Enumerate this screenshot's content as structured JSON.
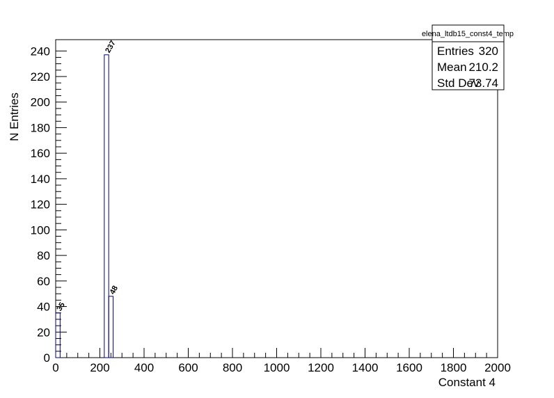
{
  "chart_data": {
    "type": "histogram",
    "x_label": "Constant 4",
    "y_label": "N Entries",
    "color": "#000080",
    "bins": [
      0,
      20,
      40,
      60,
      80,
      100,
      120,
      140,
      160,
      180,
      200,
      220,
      240,
      260,
      280,
      300,
      320,
      340,
      360,
      380,
      400,
      420,
      440,
      460,
      480,
      500,
      520,
      540,
      560,
      580,
      600,
      620,
      640,
      660,
      680,
      700,
      720,
      740,
      760,
      780,
      800,
      820,
      840,
      860,
      880,
      900,
      920,
      940,
      960,
      980,
      1000,
      1020,
      1040,
      1060,
      1080,
      1100,
      1120,
      1140,
      1160,
      1180,
      1200,
      1220,
      1240,
      1260,
      1280,
      1300,
      1320,
      1340,
      1360,
      1380,
      1400,
      1420,
      1440,
      1460,
      1480,
      1500,
      1520,
      1540,
      1560,
      1580,
      1600,
      1620,
      1640,
      1660,
      1680,
      1700,
      1720,
      1740,
      1760,
      1780,
      1800,
      1820,
      1840,
      1860,
      1880,
      1900,
      1920,
      1940,
      1960,
      1980,
      2000
    ],
    "counts": [
      35,
      0,
      0,
      0,
      0,
      0,
      0,
      0,
      0,
      0,
      0,
      237,
      48,
      0,
      0,
      0,
      0,
      0,
      0,
      0,
      0,
      0,
      0,
      0,
      0,
      0,
      0,
      0,
      0,
      0,
      0,
      0,
      0,
      0,
      0,
      0,
      0,
      0,
      0,
      0,
      0,
      0,
      0,
      0,
      0,
      0,
      0,
      0,
      0,
      0,
      0,
      0,
      0,
      0,
      0,
      0,
      0,
      0,
      0,
      0,
      0,
      0,
      0,
      0,
      0,
      0,
      0,
      0,
      0,
      0,
      0,
      0,
      0,
      0,
      0,
      0,
      0,
      0,
      0,
      0,
      0,
      0,
      0,
      0,
      0,
      0,
      0,
      0,
      0,
      0,
      0,
      0,
      0,
      0,
      0,
      0,
      0,
      0,
      0,
      0
    ],
    "xlim": [
      0,
      2000
    ],
    "xticks": [
      0,
      200,
      400,
      600,
      800,
      1000,
      1200,
      1400,
      1600,
      1800,
      2000
    ],
    "ylim": [
      0,
      248.85
    ],
    "yticks": [
      0,
      20,
      40,
      60,
      80,
      100,
      120,
      140,
      160,
      180,
      200,
      220,
      240
    ],
    "stats": {
      "title": "elena_ltdb15_const4_temp",
      "rows": [
        [
          "Entries",
          320
        ],
        [
          "Mean",
          210.2
        ],
        [
          "Std Dev",
          73.74
        ]
      ]
    }
  }
}
